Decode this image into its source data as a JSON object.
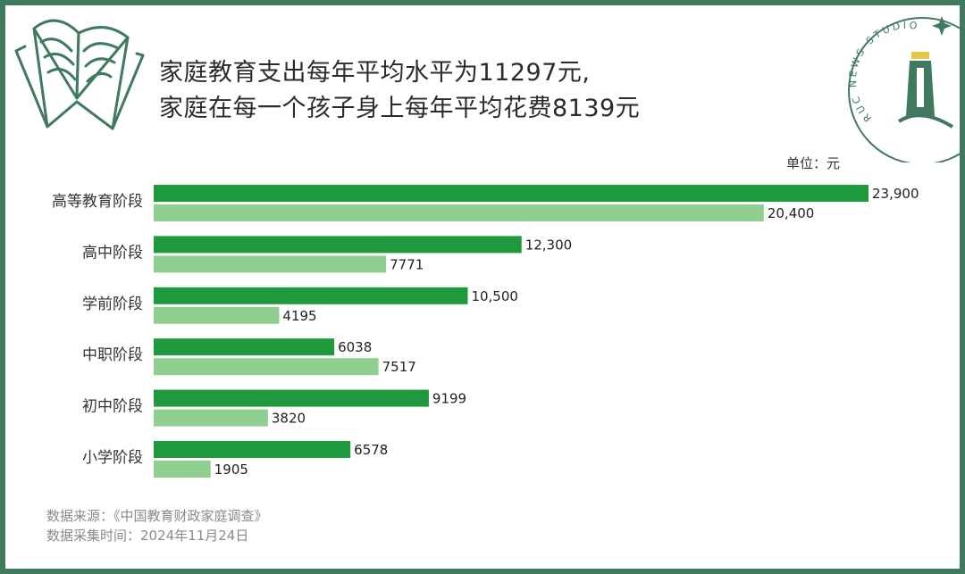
{
  "title": {
    "line1": "家庭教育支出每年平均水平为11297元,",
    "line2": "家庭在每一个孩子身上每年平均花费8139元"
  },
  "unit_label": "单位：元",
  "logo": {
    "text": "RUC NEWS STUDIO",
    "icon": "lighthouse-icon"
  },
  "decoration": {
    "icon": "open-book-icon"
  },
  "colors": {
    "frame": "#3f7a5e",
    "dark_bar": "#1e9a3c",
    "light_bar": "#8fcf8f"
  },
  "footer": {
    "source": "数据来源：《中国教育财政家庭调查》",
    "date": "数据采集时间：2024年11月24日"
  },
  "chart_data": {
    "type": "bar",
    "orientation": "horizontal",
    "categories": [
      "高等教育阶段",
      "高中阶段",
      "学前阶段",
      "中职阶段",
      "初中阶段",
      "小学阶段"
    ],
    "series": [
      {
        "values": [
          23900,
          12300,
          10500,
          6038,
          9199,
          6578
        ],
        "labels": [
          "23,900",
          "12,300",
          "10,500",
          "6038",
          "9199",
          "6578"
        ],
        "color": "#1e9a3c"
      },
      {
        "values": [
          20400,
          7771,
          4195,
          7517,
          3820,
          1905
        ],
        "labels": [
          "20,400",
          "7771",
          "4195",
          "7517",
          "3820",
          "1905"
        ],
        "color": "#8fcf8f"
      }
    ],
    "xlim": [
      0,
      23900
    ],
    "grid": false,
    "legend": "none"
  }
}
